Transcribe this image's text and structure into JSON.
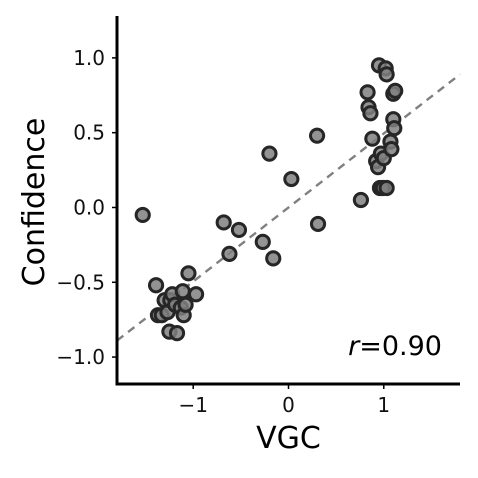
{
  "chart_data": {
    "type": "scatter",
    "xlabel": "VGC",
    "ylabel": "Confidence",
    "xlim": [
      -1.8,
      1.8
    ],
    "ylim": [
      -1.18,
      1.28
    ],
    "xticks": [
      -1,
      0,
      1
    ],
    "yticks": [
      -1.0,
      -0.5,
      0.0,
      0.5,
      1.0
    ],
    "xtick_labels": [
      "−1",
      "0",
      "1"
    ],
    "ytick_labels": [
      "−1.0",
      "−0.5",
      "0.0",
      "0.5",
      "1.0"
    ],
    "annotation": {
      "italic_part": "r",
      "rest": "=0.90"
    },
    "fit_line": {
      "x": [
        -1.8,
        1.8
      ],
      "y": [
        -0.89,
        0.89
      ],
      "style": "dashed"
    },
    "point_fill": "#808080",
    "point_edge": "#262626",
    "point_alpha": 0.85,
    "fit_color": "#808080",
    "grid": false,
    "points": [
      {
        "x": -1.53,
        "y": -0.05
      },
      {
        "x": -1.39,
        "y": -0.52
      },
      {
        "x": -1.37,
        "y": -0.72
      },
      {
        "x": -1.33,
        "y": -0.72
      },
      {
        "x": -1.3,
        "y": -0.62
      },
      {
        "x": -1.27,
        "y": -0.7
      },
      {
        "x": -1.25,
        "y": -0.83
      },
      {
        "x": -1.24,
        "y": -0.62
      },
      {
        "x": -1.22,
        "y": -0.58
      },
      {
        "x": -1.19,
        "y": -0.65
      },
      {
        "x": -1.17,
        "y": -0.84
      },
      {
        "x": -1.13,
        "y": -0.67
      },
      {
        "x": -1.11,
        "y": -0.56
      },
      {
        "x": -1.1,
        "y": -0.72
      },
      {
        "x": -1.08,
        "y": -0.65
      },
      {
        "x": -1.05,
        "y": -0.44
      },
      {
        "x": -0.97,
        "y": -0.58
      },
      {
        "x": -0.68,
        "y": -0.1
      },
      {
        "x": -0.62,
        "y": -0.31
      },
      {
        "x": -0.52,
        "y": -0.15
      },
      {
        "x": -0.27,
        "y": -0.23
      },
      {
        "x": -0.2,
        "y": 0.36
      },
      {
        "x": -0.16,
        "y": -0.34
      },
      {
        "x": 0.03,
        "y": 0.19
      },
      {
        "x": 0.3,
        "y": 0.48
      },
      {
        "x": 0.31,
        "y": -0.11
      },
      {
        "x": 0.76,
        "y": 0.05
      },
      {
        "x": 0.83,
        "y": 0.77
      },
      {
        "x": 0.84,
        "y": 0.67
      },
      {
        "x": 0.86,
        "y": 0.63
      },
      {
        "x": 0.88,
        "y": 0.46
      },
      {
        "x": 0.92,
        "y": 0.31
      },
      {
        "x": 0.94,
        "y": 0.27
      },
      {
        "x": 0.95,
        "y": 0.95
      },
      {
        "x": 0.96,
        "y": 0.13
      },
      {
        "x": 0.97,
        "y": 0.36
      },
      {
        "x": 0.99,
        "y": 0.13
      },
      {
        "x": 1.0,
        "y": 0.33
      },
      {
        "x": 1.02,
        "y": 0.93
      },
      {
        "x": 1.03,
        "y": 0.89
      },
      {
        "x": 1.03,
        "y": 0.13
      },
      {
        "x": 1.07,
        "y": 0.44
      },
      {
        "x": 1.08,
        "y": 0.39
      },
      {
        "x": 1.1,
        "y": 0.76
      },
      {
        "x": 1.1,
        "y": 0.59
      },
      {
        "x": 1.11,
        "y": 0.53
      },
      {
        "x": 1.12,
        "y": 0.78
      }
    ]
  }
}
